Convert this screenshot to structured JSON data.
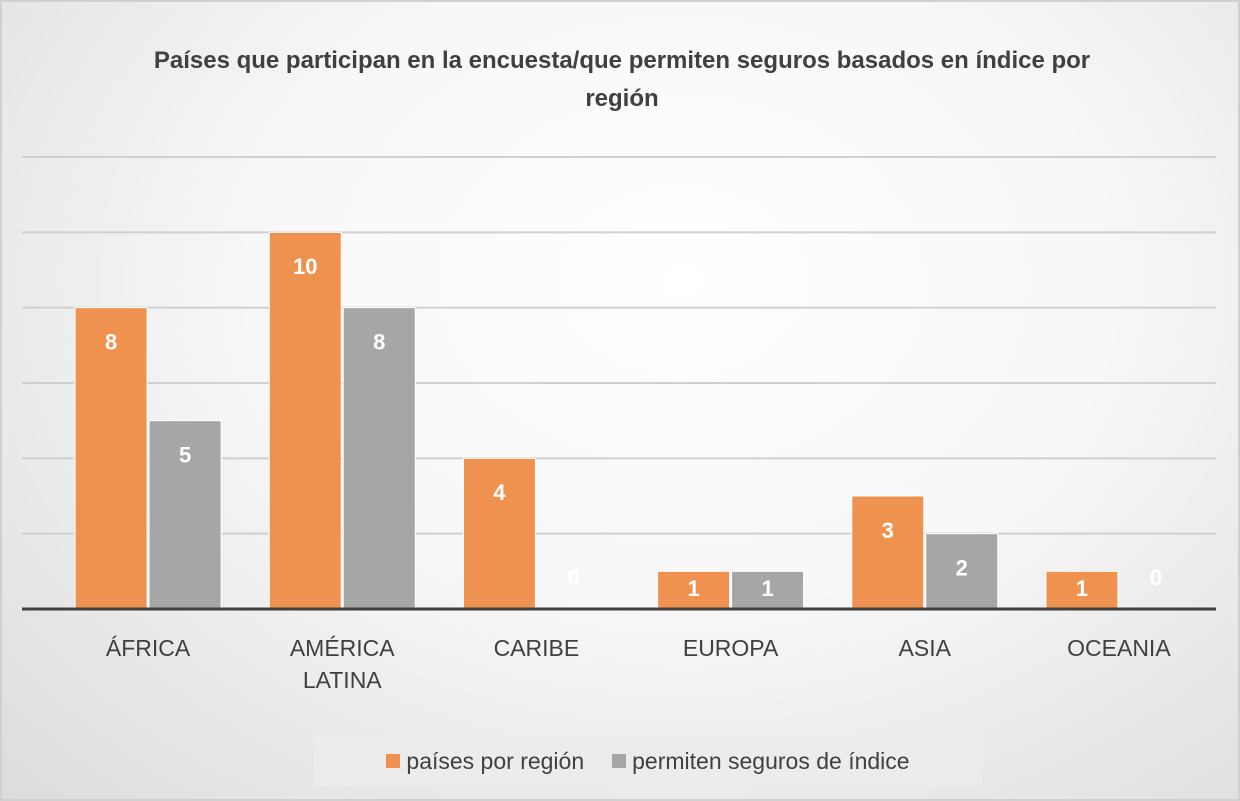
{
  "chart_data": {
    "type": "bar",
    "title": "Países que participan en la encuesta/que permiten seguros basados en índice por región",
    "categories": [
      "ÁFRICA",
      "AMÉRICA LATINA",
      "CARIBE",
      "EUROPA",
      "ASIA",
      "OCEANIA"
    ],
    "series": [
      {
        "name": "países por región",
        "color": "#f0924f",
        "values": [
          8,
          10,
          4,
          1,
          3,
          1
        ]
      },
      {
        "name": "permiten seguros de índice",
        "color": "#a6a6a6",
        "values": [
          5,
          8,
          0,
          1,
          2,
          0
        ]
      }
    ],
    "ylim": [
      0,
      12
    ],
    "yticks": [
      0,
      2,
      4,
      6,
      8,
      10,
      12
    ],
    "grid": true,
    "legend": "bottom"
  }
}
